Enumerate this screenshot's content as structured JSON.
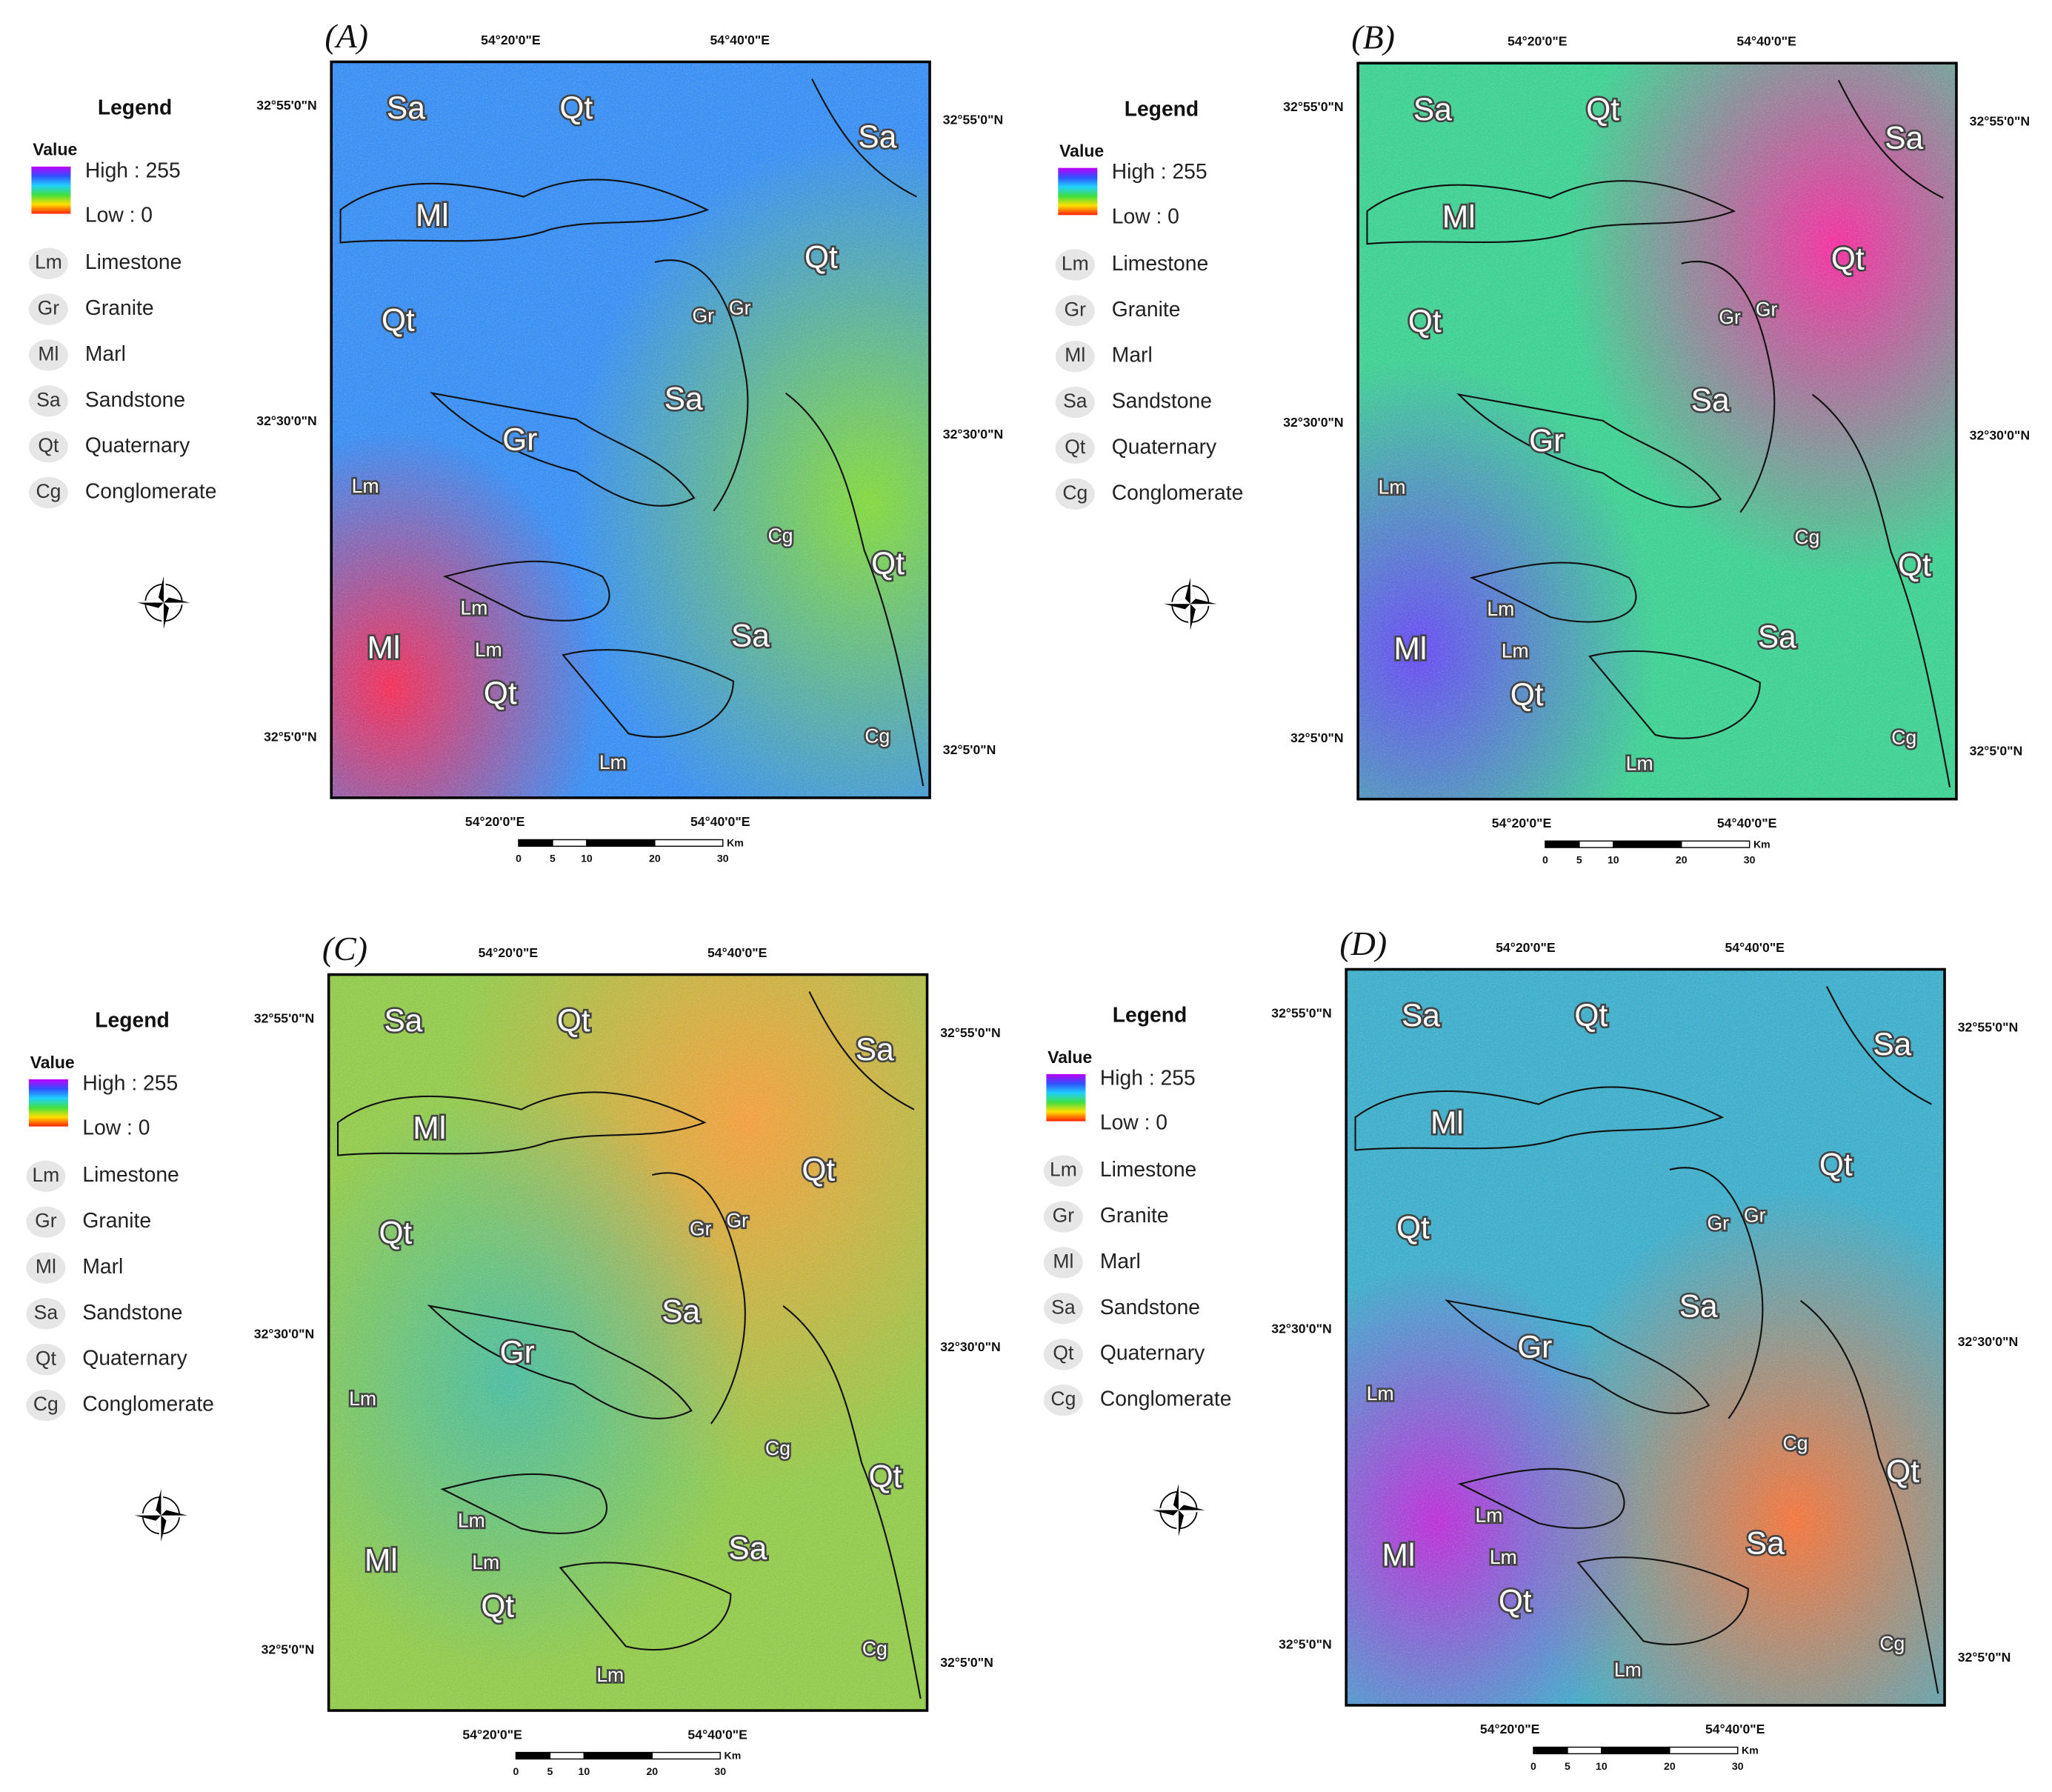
{
  "panels": [
    {
      "label": "(A)",
      "lon_labels_top": [
        "54°20'0\"E",
        "54°40'0\"E"
      ],
      "lon_labels_bottom": [
        "54°20'0\"E",
        "54°40'0\"E"
      ],
      "lat_labels_left": [
        "32°55'0\"N",
        "32°30'0\"N",
        "32°5'0\"N"
      ],
      "lat_labels_right": [
        "32°55'0\"N",
        "32°30'0\"N",
        "32°5'0\"N"
      ],
      "scale_bar": {
        "unit": "Km",
        "ticks": [
          0,
          5,
          10,
          20,
          30
        ]
      },
      "legend": {
        "title": "Legend",
        "value_title": "Value",
        "high": "High : 255",
        "low": "Low : 0",
        "items": [
          {
            "symbol": "Lm",
            "name": "Limestone"
          },
          {
            "symbol": "Gr",
            "name": "Granite"
          },
          {
            "symbol": "Ml",
            "name": "Marl"
          },
          {
            "symbol": "Sa",
            "name": "Sandstone"
          },
          {
            "symbol": "Qt",
            "name": "Quaternary"
          },
          {
            "symbol": "Cg",
            "name": "Conglomerate"
          }
        ]
      },
      "map_labels": [
        "Sa",
        "Qt",
        "Sa",
        "Ml",
        "Qt",
        "Qt",
        "Gr",
        "Gr",
        "Sa",
        "Gr",
        "Lm",
        "Cg",
        "Qt",
        "Lm",
        "Ml",
        "Lm",
        "Sa",
        "Qt",
        "Cg",
        "Lm"
      ]
    },
    {
      "label": "(B)",
      "lon_labels_top": [
        "54°20'0\"E",
        "54°40'0\"E"
      ],
      "lon_labels_bottom": [
        "54°20'0\"E",
        "54°40'0\"E"
      ],
      "lat_labels_left": [
        "32°55'0\"N",
        "32°30'0\"N",
        "32°5'0\"N"
      ],
      "lat_labels_right": [
        "32°55'0\"N",
        "32°30'0\"N",
        "32°5'0\"N"
      ],
      "scale_bar": {
        "unit": "Km",
        "ticks": [
          0,
          5,
          10,
          20,
          30
        ]
      },
      "legend": {
        "title": "Legend",
        "value_title": "Value",
        "high": "High : 255",
        "low": "Low : 0",
        "items": [
          {
            "symbol": "Lm",
            "name": "Limestone"
          },
          {
            "symbol": "Gr",
            "name": "Granite"
          },
          {
            "symbol": "Ml",
            "name": "Marl"
          },
          {
            "symbol": "Sa",
            "name": "Sandstone"
          },
          {
            "symbol": "Qt",
            "name": "Quaternary"
          },
          {
            "symbol": "Cg",
            "name": "Conglomerate"
          }
        ]
      },
      "map_labels": [
        "Sa",
        "Qt",
        "Sa",
        "Ml",
        "Qt",
        "Qt",
        "Gr",
        "Gr",
        "Sa",
        "Gr",
        "Lm",
        "Cg",
        "Qt",
        "Lm",
        "Ml",
        "Lm",
        "Sa",
        "Qt",
        "Cg",
        "Lm"
      ]
    },
    {
      "label": "(C)",
      "lon_labels_top": [
        "54°20'0\"E",
        "54°40'0\"E"
      ],
      "lon_labels_bottom": [
        "54°20'0\"E",
        "54°40'0\"E"
      ],
      "lat_labels_left": [
        "32°55'0\"N",
        "32°30'0\"N",
        "32°5'0\"N"
      ],
      "lat_labels_right": [
        "32°55'0\"N",
        "32°30'0\"N",
        "32°5'0\"N"
      ],
      "scale_bar": {
        "unit": "Km",
        "ticks": [
          0,
          5,
          10,
          20,
          30
        ]
      },
      "legend": {
        "title": "Legend",
        "value_title": "Value",
        "high": "High : 255",
        "low": "Low : 0",
        "items": [
          {
            "symbol": "Lm",
            "name": "Limestone"
          },
          {
            "symbol": "Gr",
            "name": "Granite"
          },
          {
            "symbol": "Ml",
            "name": "Marl"
          },
          {
            "symbol": "Sa",
            "name": "Sandstone"
          },
          {
            "symbol": "Qt",
            "name": "Quaternary"
          },
          {
            "symbol": "Cg",
            "name": "Conglomerate"
          }
        ]
      },
      "map_labels": [
        "Sa",
        "Qt",
        "Sa",
        "Ml",
        "Qt",
        "Qt",
        "Gr",
        "Gr",
        "Sa",
        "Gr",
        "Lm",
        "Cg",
        "Qt",
        "Lm",
        "Ml",
        "Lm",
        "Sa",
        "Qt",
        "Cg",
        "Lm"
      ]
    },
    {
      "label": "(D)",
      "lon_labels_top": [
        "54°20'0\"E",
        "54°40'0\"E"
      ],
      "lon_labels_bottom": [
        "54°20'0\"E",
        "54°40'0\"E"
      ],
      "lat_labels_left": [
        "32°55'0\"N",
        "32°30'0\"N",
        "32°5'0\"N"
      ],
      "lat_labels_right": [
        "32°55'0\"N",
        "32°30'0\"N",
        "32°5'0\"N"
      ],
      "scale_bar": {
        "unit": "Km",
        "ticks": [
          0,
          5,
          10,
          20,
          30
        ]
      },
      "legend": {
        "title": "Legend",
        "value_title": "Value",
        "high": "High : 255",
        "low": "Low : 0",
        "items": [
          {
            "symbol": "Lm",
            "name": "Limestone"
          },
          {
            "symbol": "Gr",
            "name": "Granite"
          },
          {
            "symbol": "Ml",
            "name": "Marl"
          },
          {
            "symbol": "Sa",
            "name": "Sandstone"
          },
          {
            "symbol": "Qt",
            "name": "Quaternary"
          },
          {
            "symbol": "Cg",
            "name": "Conglomerate"
          }
        ]
      },
      "map_labels": [
        "Sa",
        "Qt",
        "Sa",
        "Ml",
        "Qt",
        "Qt",
        "Gr",
        "Gr",
        "Sa",
        "Gr",
        "Lm",
        "Cg",
        "Qt",
        "Lm",
        "Ml",
        "Lm",
        "Sa",
        "Qt",
        "Cg",
        "Lm"
      ]
    }
  ]
}
